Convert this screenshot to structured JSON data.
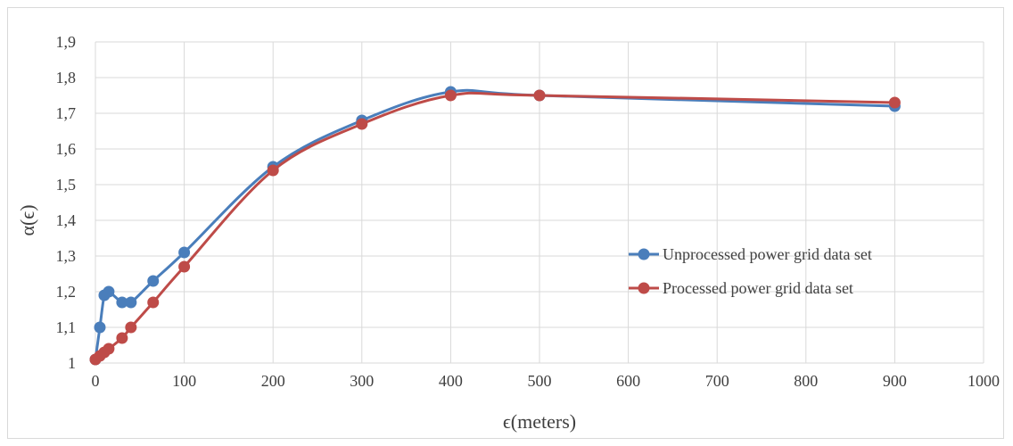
{
  "chart_data": {
    "type": "line",
    "title": "",
    "xlabel": "ϵ(meters)",
    "ylabel": "α(ϵ)",
    "xlim": [
      0,
      1000
    ],
    "ylim": [
      1,
      1.9
    ],
    "x_ticks": [
      0,
      100,
      200,
      300,
      400,
      500,
      600,
      700,
      800,
      900,
      1000
    ],
    "y_ticks": [
      1,
      1.1,
      1.2,
      1.3,
      1.4,
      1.5,
      1.6,
      1.7,
      1.8,
      1.9
    ],
    "x_tick_labels": [
      "0",
      "100",
      "200",
      "300",
      "400",
      "500",
      "600",
      "700",
      "800",
      "900",
      "1000"
    ],
    "y_tick_labels": [
      "1",
      "1,1",
      "1,2",
      "1,3",
      "1,4",
      "1,5",
      "1,6",
      "1,7",
      "1,8",
      "1,9"
    ],
    "grid": "vertical and horizontal",
    "legend_position": "right",
    "smooth": true,
    "series": [
      {
        "name": "Unprocessed power grid data set",
        "color": "#4a7ebb",
        "x": [
          0,
          5,
          10,
          15,
          30,
          40,
          65,
          100,
          200,
          300,
          400,
          500,
          900
        ],
        "y": [
          1.01,
          1.1,
          1.19,
          1.2,
          1.17,
          1.17,
          1.23,
          1.31,
          1.55,
          1.68,
          1.76,
          1.75,
          1.72
        ]
      },
      {
        "name": "Processed power grid data set",
        "color": "#be4b48",
        "x": [
          0,
          5,
          10,
          15,
          30,
          40,
          65,
          100,
          200,
          300,
          400,
          500,
          900
        ],
        "y": [
          1.01,
          1.02,
          1.03,
          1.04,
          1.07,
          1.1,
          1.17,
          1.27,
          1.54,
          1.67,
          1.75,
          1.75,
          1.73
        ]
      }
    ]
  }
}
